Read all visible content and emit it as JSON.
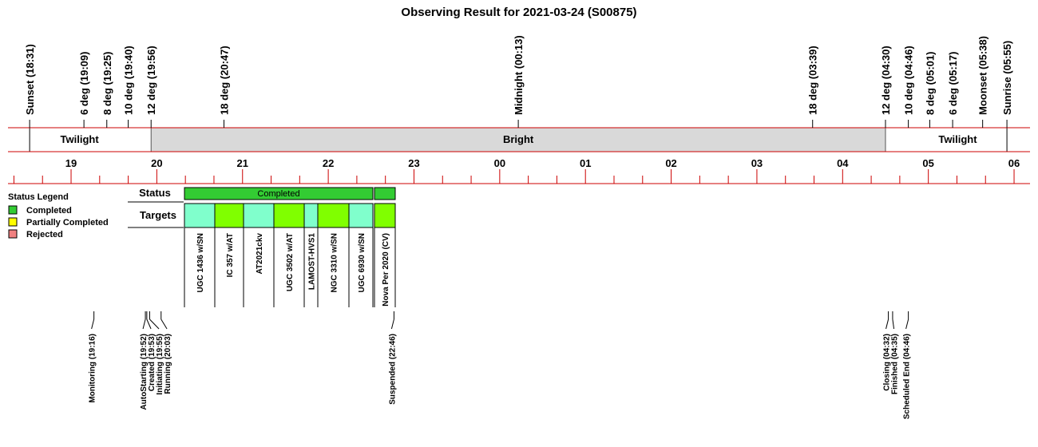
{
  "chart_data": {
    "type": "timeline",
    "title": "Observing Result for 2021-03-24 (S00875)",
    "xlim": [
      18.264,
      30.186
    ],
    "xticks": [
      19,
      20,
      21,
      22,
      23,
      {
        "value": 24,
        "label": "00"
      },
      {
        "value": 25,
        "label": "01"
      },
      {
        "value": 26,
        "label": "02"
      },
      {
        "value": 27,
        "label": "03"
      },
      {
        "value": 28,
        "label": "04"
      },
      {
        "value": 29,
        "label": "05"
      },
      {
        "value": 30,
        "label": "06"
      }
    ],
    "events": [
      {
        "label": "Sunset (18:31)"
      },
      {
        "label": "6 deg (19:09)"
      },
      {
        "label": "8 deg (19:25)"
      },
      {
        "label": "10 deg (19:40)"
      },
      {
        "label": "12 deg (19:56)"
      },
      {
        "label": "18 deg (20:47)"
      },
      {
        "label": "Midnight (00:13)"
      },
      {
        "label": "18 deg (03:39)"
      },
      {
        "label": "12 deg (04:30)"
      },
      {
        "label": "10 deg (04:46)"
      },
      {
        "label": "8 deg (05:01)"
      },
      {
        "label": "6 deg (05:17)"
      },
      {
        "label": "Moonset (05:38)",
        "color": "#1a1acc"
      },
      {
        "label": "Sunrise (05:55)"
      }
    ],
    "bands": [
      {
        "label": "Twilight",
        "color": "#ffffff"
      },
      {
        "label": "Bright",
        "color": "#d9d9d9"
      },
      {
        "label": "Twilight",
        "color": "#ffffff"
      }
    ],
    "status_legend": {
      "title": "Status Legend",
      "items": [
        {
          "name": "Completed",
          "color": "#33cc33"
        },
        {
          "name": "Partially Completed",
          "color": "#ffff00"
        },
        {
          "name": "Rejected",
          "color": "#f08080"
        }
      ]
    },
    "row_labels": {
      "status": "Status",
      "targets": "Targets"
    },
    "status": {
      "label": "Completed",
      "color": "#33cc33"
    },
    "targets": [
      {
        "name": "UGC 1436 w/SN",
        "color": "#80ffcc"
      },
      {
        "name": "IC 357 w/AT",
        "color": "#80ff00"
      },
      {
        "name": "AT2021ckv",
        "color": "#80ffcc"
      },
      {
        "name": "UGC 3502 w/AT",
        "color": "#80ff00"
      },
      {
        "name": "LAMOST-HVS1",
        "color": "#80ffcc"
      },
      {
        "name": "NGC 3310 w/SN",
        "color": "#80ff00"
      },
      {
        "name": "UGC 6930 w/SN",
        "color": "#80ffcc"
      },
      {
        "name": "Nova Per 2020 (CV)",
        "color": "#80ff00"
      }
    ],
    "states": [
      {
        "label": "Monitoring (19:16)"
      },
      {
        "label": "AutoStarting (19:52)"
      },
      {
        "label": "Created (19:53)"
      },
      {
        "label": "Initiating (19:55)"
      },
      {
        "label": "Running (20:03)"
      },
      {
        "label": "Suspended (22:46)",
        "color": "#f08c00"
      },
      {
        "label": "Closing (04:32)"
      },
      {
        "label": "Finished (04:35)"
      },
      {
        "label": "Scheduled End (04:46)"
      }
    ]
  }
}
